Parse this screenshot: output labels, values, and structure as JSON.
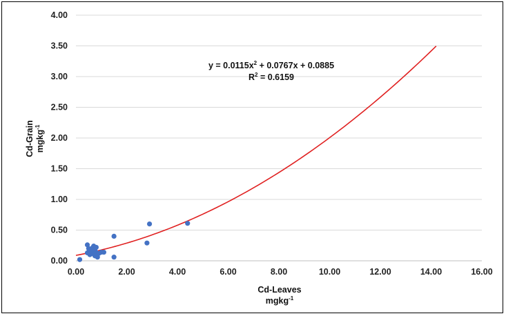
{
  "chart_data": {
    "type": "scatter",
    "xlabel": "Cd-Leaves",
    "xlabel_unit": "mgkg",
    "ylabel": "Cd-Grain",
    "ylabel_unit": "mgkg",
    "unit_superscript": "-1",
    "xlim": [
      0,
      16
    ],
    "ylim": [
      0,
      4
    ],
    "x_ticks": [
      "0.00",
      "2.00",
      "4.00",
      "6.00",
      "8.00",
      "10.00",
      "12.00",
      "14.00",
      "16.00"
    ],
    "y_ticks": [
      "0.00",
      "0.50",
      "1.00",
      "1.50",
      "2.00",
      "2.50",
      "3.00",
      "3.50",
      "4.00"
    ],
    "grid": "horizontal",
    "legend": "none",
    "point_color": "#4472c4",
    "trend_color": "#e02020",
    "trendline": {
      "type": "polynomial",
      "a": 0.0115,
      "b": 0.0767,
      "c": 0.0885,
      "x_range": [
        0,
        14.2
      ]
    },
    "equation": {
      "y_part": "y = 0.0115x",
      "sup": "2",
      "rest": " + 0.0767x + 0.0885",
      "r2_prefix": "R",
      "r2_sup": "2",
      "r2_value": " = 0.6159"
    },
    "points": [
      {
        "x": 0.15,
        "y": 0.02
      },
      {
        "x": 0.45,
        "y": 0.26
      },
      {
        "x": 0.45,
        "y": 0.13
      },
      {
        "x": 0.5,
        "y": 0.2
      },
      {
        "x": 0.55,
        "y": 0.1
      },
      {
        "x": 0.55,
        "y": 0.16
      },
      {
        "x": 0.6,
        "y": 0.18
      },
      {
        "x": 0.6,
        "y": 0.12
      },
      {
        "x": 0.65,
        "y": 0.21
      },
      {
        "x": 0.65,
        "y": 0.15
      },
      {
        "x": 0.7,
        "y": 0.24
      },
      {
        "x": 0.7,
        "y": 0.11
      },
      {
        "x": 0.75,
        "y": 0.19
      },
      {
        "x": 0.75,
        "y": 0.08
      },
      {
        "x": 0.8,
        "y": 0.22
      },
      {
        "x": 0.8,
        "y": 0.14
      },
      {
        "x": 0.85,
        "y": 0.06
      },
      {
        "x": 0.9,
        "y": 0.12
      },
      {
        "x": 1.0,
        "y": 0.14
      },
      {
        "x": 1.1,
        "y": 0.14
      },
      {
        "x": 1.5,
        "y": 0.4
      },
      {
        "x": 1.5,
        "y": 0.06
      },
      {
        "x": 2.8,
        "y": 0.29
      },
      {
        "x": 2.9,
        "y": 0.6
      },
      {
        "x": 4.4,
        "y": 0.61
      }
    ]
  }
}
